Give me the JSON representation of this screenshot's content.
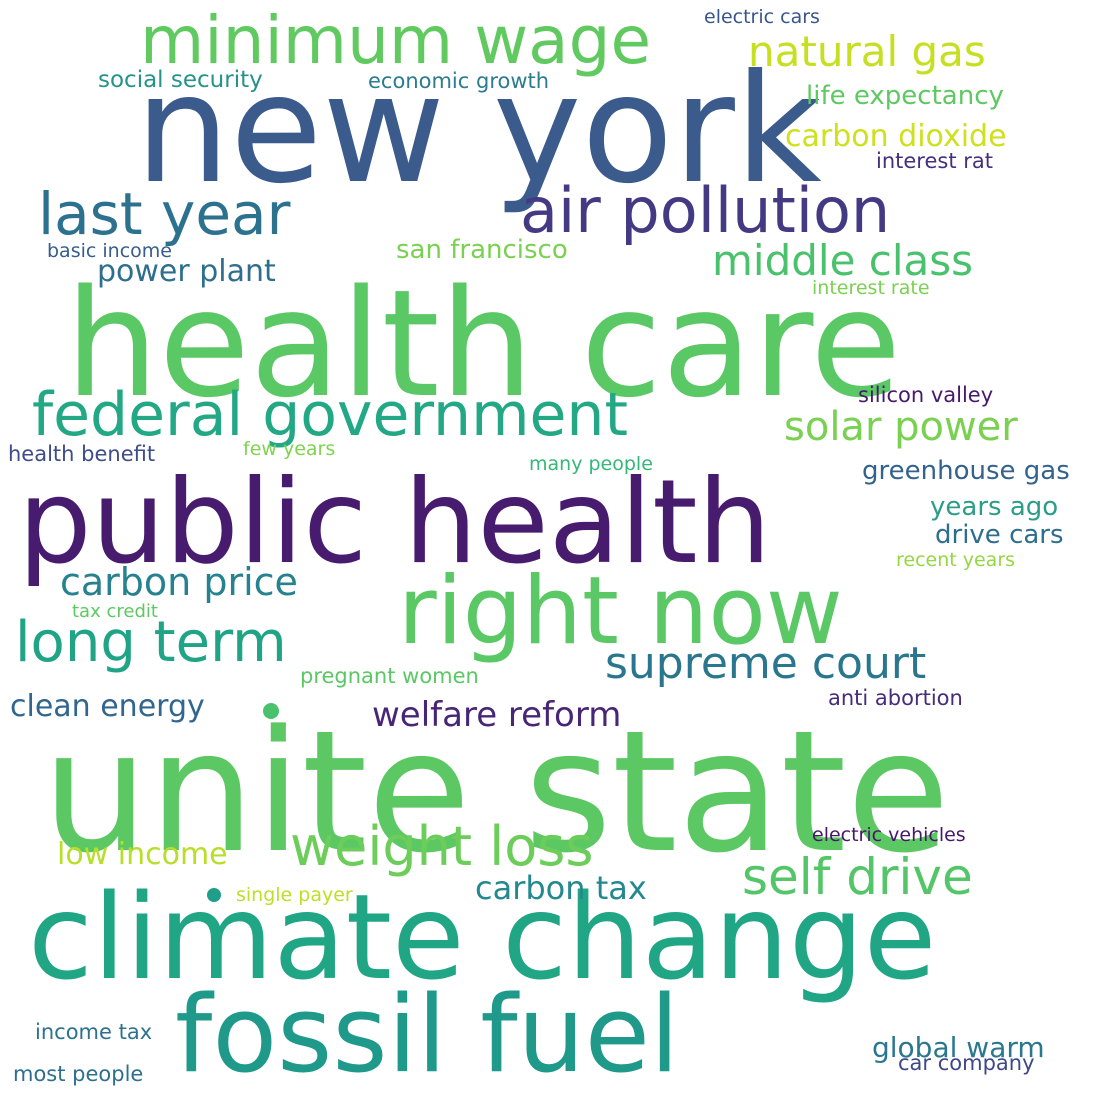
{
  "word_cloud": {
    "words": [
      {
        "text": "new york",
        "color": "#3b5b8c"
      },
      {
        "text": "health care",
        "color": "#5ac864"
      },
      {
        "text": "unite state",
        "color": "#5cc863"
      },
      {
        "text": "climate change",
        "color": "#21a685"
      },
      {
        "text": "public health",
        "color": "#471b6e"
      },
      {
        "text": "right now",
        "color": "#5ac864"
      },
      {
        "text": "fossil fuel",
        "color": "#1f9a8a"
      },
      {
        "text": "minimum wage",
        "color": "#60ca60"
      },
      {
        "text": "federal government",
        "color": "#22a884"
      },
      {
        "text": "air pollution",
        "color": "#443983"
      },
      {
        "text": "last year",
        "color": "#2c728e"
      },
      {
        "text": "long term",
        "color": "#20a486"
      },
      {
        "text": "weight loss",
        "color": "#6ccd5a"
      },
      {
        "text": "self drive",
        "color": "#54c568"
      },
      {
        "text": "natural gas",
        "color": "#c6e021"
      },
      {
        "text": "supreme court",
        "color": "#2a768e"
      },
      {
        "text": "middle class",
        "color": "#4ac16d"
      },
      {
        "text": "carbon price",
        "color": "#26828e"
      },
      {
        "text": "solar power",
        "color": "#7ad151"
      },
      {
        "text": "carbon dioxide",
        "color": "#cde11d"
      },
      {
        "text": "welfare reform",
        "color": "#482677"
      },
      {
        "text": "carbon tax",
        "color": "#23898e"
      },
      {
        "text": "global warm",
        "color": "#2a788e"
      },
      {
        "text": "low income",
        "color": "#b8de29"
      },
      {
        "text": "clean energy",
        "color": "#31668e"
      },
      {
        "text": "power plant",
        "color": "#2e6f8e"
      },
      {
        "text": "life expectancy",
        "color": "#5ec962"
      },
      {
        "text": "years ago",
        "color": "#2c9d88"
      },
      {
        "text": "drive cars",
        "color": "#2d6e8e"
      },
      {
        "text": "greenhouse gas",
        "color": "#33638d"
      },
      {
        "text": "san francisco",
        "color": "#7ad151"
      },
      {
        "text": "social security",
        "color": "#25938b"
      },
      {
        "text": "economic growth",
        "color": "#2a7c8e"
      },
      {
        "text": "interest rat",
        "color": "#46307e"
      },
      {
        "text": "silicon valley",
        "color": "#481a6c"
      },
      {
        "text": "health benefit",
        "color": "#3e4c8a"
      },
      {
        "text": "few years",
        "color": "#7fd34e"
      },
      {
        "text": "many people",
        "color": "#35b779"
      },
      {
        "text": "recent years",
        "color": "#95d840"
      },
      {
        "text": "pregnant women",
        "color": "#5ac864"
      },
      {
        "text": "anti abortion",
        "color": "#472c7a"
      },
      {
        "text": "tax credit",
        "color": "#5ec962"
      },
      {
        "text": "electric vehicles",
        "color": "#481769"
      },
      {
        "text": "single payer",
        "color": "#bddf26"
      },
      {
        "text": "income tax",
        "color": "#2c728e"
      },
      {
        "text": "most people",
        "color": "#2e6f8e"
      },
      {
        "text": "car company",
        "color": "#3f4788"
      },
      {
        "text": "electric cars",
        "color": "#39568c"
      },
      {
        "text": "basic income",
        "color": "#365d8d"
      },
      {
        "text": "interest rate",
        "color": "#7ad151"
      }
    ],
    "dots": [
      {
        "name": "dot-1",
        "color": "#4ac16d"
      },
      {
        "name": "dot-2",
        "color": "#1f9e89"
      }
    ]
  }
}
